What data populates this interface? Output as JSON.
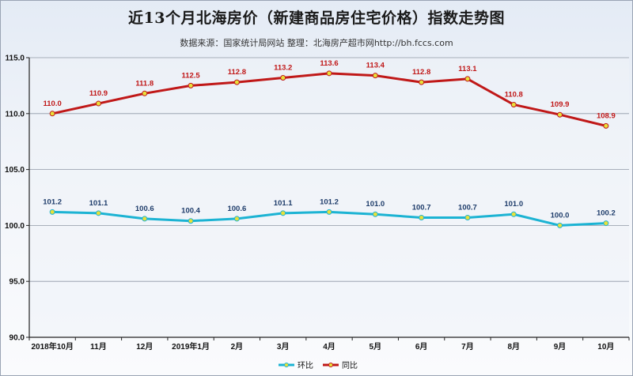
{
  "title": "近13个月北海房价（新建商品房住宅价格）指数走势图",
  "subtitle": "数据来源：国家统计局网站    整理：北海房产超市网http://bh.fccs.com",
  "chart_data": {
    "type": "line",
    "categories": [
      "2018年10月",
      "11月",
      "12月",
      "2019年1月",
      "2月",
      "3月",
      "4月",
      "5月",
      "6月",
      "7月",
      "8月",
      "9月",
      "10月"
    ],
    "ylim": [
      90.0,
      115.0
    ],
    "yticks": [
      "90.0",
      "95.0",
      "100.0",
      "105.0",
      "110.0",
      "115.0"
    ],
    "grid": true,
    "legend_position": "bottom-center",
    "series": [
      {
        "name": "环比",
        "color": "#1cb3d3",
        "label_color": "#1f3d6b",
        "values": [
          101.2,
          101.1,
          100.6,
          100.4,
          100.6,
          101.1,
          101.2,
          101.0,
          100.7,
          100.7,
          101.0,
          100.0,
          100.2
        ],
        "labels": [
          "101.2",
          "101.1",
          "100.6",
          "100.4",
          "100.6",
          "101.1",
          "101.2",
          "101.0",
          "100.7",
          "100.7",
          "101.0",
          "100.0",
          "100.2"
        ]
      },
      {
        "name": "同比",
        "color": "#c01818",
        "label_color": "#c01818",
        "values": [
          110.0,
          110.9,
          111.8,
          112.5,
          112.8,
          113.2,
          113.6,
          113.4,
          112.8,
          113.1,
          110.8,
          109.9,
          108.9
        ],
        "labels": [
          "110.0",
          "110.9",
          "111.8",
          "112.5",
          "112.8",
          "113.2",
          "113.6",
          "113.4",
          "112.8",
          "113.1",
          "110.8",
          "109.9",
          "108.9"
        ]
      }
    ],
    "marker_color": "#e8e03a"
  }
}
